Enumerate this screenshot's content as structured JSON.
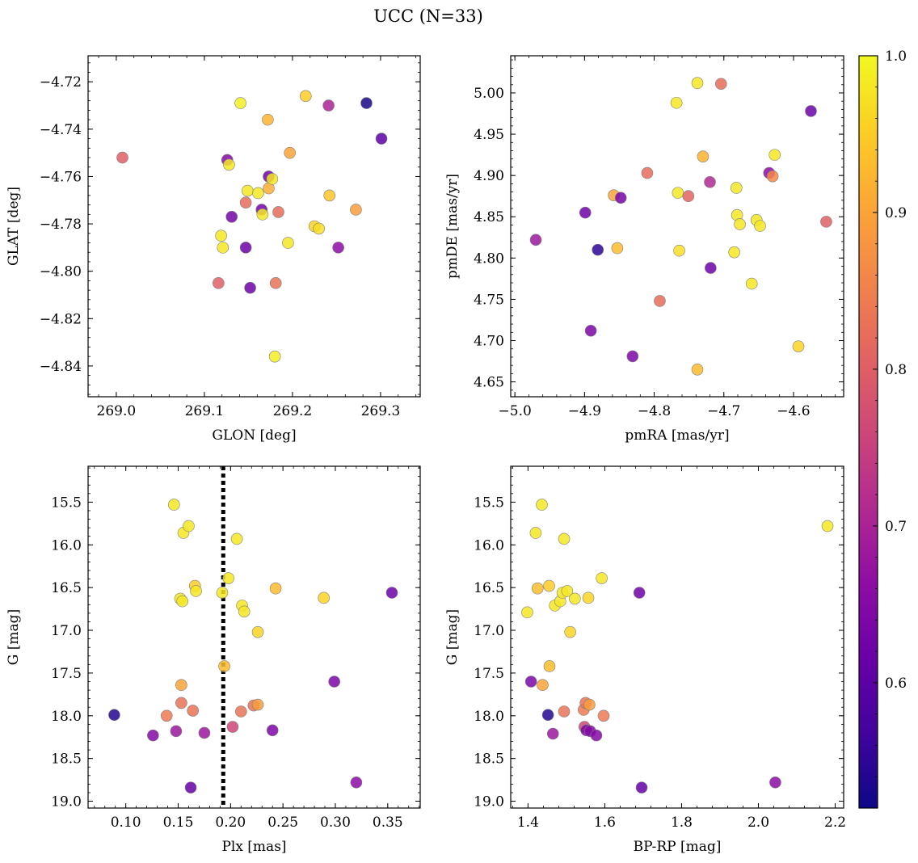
{
  "title": "UCC (N=33)",
  "chart_data": [
    {
      "id": "glon-glat",
      "type": "scatter",
      "title": "",
      "xlabel": "GLON [deg]",
      "ylabel": "GLAT [deg]",
      "xlim": [
        268.968,
        269.345
      ],
      "ylim": [
        -4.853,
        -4.709
      ],
      "y_inverted": false,
      "xticks": [
        269.0,
        269.1,
        269.2,
        269.3
      ],
      "xtick_labels": [
        "269.0",
        "269.1",
        "269.2",
        "269.3"
      ],
      "yticks": [
        -4.72,
        -4.74,
        -4.76,
        -4.78,
        -4.8,
        -4.82,
        -4.84
      ],
      "ytick_labels": [
        "−4.72",
        "−4.74",
        "−4.76",
        "−4.78",
        "−4.80",
        "−4.82",
        "−4.84"
      ],
      "points": [
        {
          "x": 269.007,
          "y": -4.752,
          "c": 0.8
        },
        {
          "x": 269.116,
          "y": -4.805,
          "c": 0.8
        },
        {
          "x": 269.119,
          "y": -4.785,
          "c": 0.98
        },
        {
          "x": 269.121,
          "y": -4.79,
          "c": 0.98
        },
        {
          "x": 269.126,
          "y": -4.753,
          "c": 0.65
        },
        {
          "x": 269.128,
          "y": -4.755,
          "c": 0.98
        },
        {
          "x": 269.131,
          "y": -4.777,
          "c": 0.63
        },
        {
          "x": 269.141,
          "y": -4.729,
          "c": 0.99
        },
        {
          "x": 269.147,
          "y": -4.771,
          "c": 0.82
        },
        {
          "x": 269.147,
          "y": -4.79,
          "c": 0.62
        },
        {
          "x": 269.149,
          "y": -4.766,
          "c": 0.98
        },
        {
          "x": 269.152,
          "y": -4.807,
          "c": 0.62
        },
        {
          "x": 269.161,
          "y": -4.767,
          "c": 0.98
        },
        {
          "x": 269.165,
          "y": -4.774,
          "c": 0.63
        },
        {
          "x": 269.166,
          "y": -4.776,
          "c": 0.98
        },
        {
          "x": 269.172,
          "y": -4.736,
          "c": 0.92
        },
        {
          "x": 269.173,
          "y": -4.76,
          "c": 0.62
        },
        {
          "x": 269.173,
          "y": -4.765,
          "c": 0.91
        },
        {
          "x": 269.177,
          "y": -4.761,
          "c": 0.98
        },
        {
          "x": 269.18,
          "y": -4.836,
          "c": 0.99
        },
        {
          "x": 269.181,
          "y": -4.805,
          "c": 0.83
        },
        {
          "x": 269.184,
          "y": -4.775,
          "c": 0.82
        },
        {
          "x": 269.195,
          "y": -4.788,
          "c": 0.98
        },
        {
          "x": 269.197,
          "y": -4.75,
          "c": 0.9
        },
        {
          "x": 269.215,
          "y": -4.726,
          "c": 0.95
        },
        {
          "x": 269.225,
          "y": -4.781,
          "c": 0.96
        },
        {
          "x": 269.23,
          "y": -4.782,
          "c": 0.97
        },
        {
          "x": 269.241,
          "y": -4.73,
          "c": 0.7
        },
        {
          "x": 269.242,
          "y": -4.768,
          "c": 0.94
        },
        {
          "x": 269.252,
          "y": -4.79,
          "c": 0.66
        },
        {
          "x": 269.272,
          "y": -4.774,
          "c": 0.89
        },
        {
          "x": 269.284,
          "y": -4.729,
          "c": 0.53
        },
        {
          "x": 269.301,
          "y": -4.744,
          "c": 0.6
        }
      ]
    },
    {
      "id": "pmra-pmde",
      "type": "scatter",
      "title": "",
      "xlabel": "pmRA [mas/yr]",
      "ylabel": "pmDE [mas/yr]",
      "xlim": [
        -5.006,
        -4.528
      ],
      "ylim": [
        4.632,
        5.045
      ],
      "y_inverted": false,
      "xticks": [
        -5.0,
        -4.9,
        -4.8,
        -4.7,
        -4.6
      ],
      "xtick_labels": [
        "−5.0",
        "−4.9",
        "−4.8",
        "−4.7",
        "−4.6"
      ],
      "yticks": [
        4.65,
        4.7,
        4.75,
        4.8,
        4.85,
        4.9,
        4.95,
        5.0
      ],
      "ytick_labels": [
        "4.65",
        "4.70",
        "4.75",
        "4.80",
        "4.85",
        "4.90",
        "4.95",
        "5.00"
      ],
      "points": [
        {
          "x": -4.97,
          "y": 4.822,
          "c": 0.68
        },
        {
          "x": -4.899,
          "y": 4.855,
          "c": 0.62
        },
        {
          "x": -4.891,
          "y": 4.712,
          "c": 0.64
        },
        {
          "x": -4.881,
          "y": 4.81,
          "c": 0.55
        },
        {
          "x": -4.858,
          "y": 4.876,
          "c": 0.9
        },
        {
          "x": -4.853,
          "y": 4.812,
          "c": 0.93
        },
        {
          "x": -4.848,
          "y": 4.873,
          "c": 0.63
        },
        {
          "x": -4.831,
          "y": 4.681,
          "c": 0.64
        },
        {
          "x": -4.81,
          "y": 4.903,
          "c": 0.82
        },
        {
          "x": -4.792,
          "y": 4.748,
          "c": 0.82
        },
        {
          "x": -4.768,
          "y": 4.988,
          "c": 0.98
        },
        {
          "x": -4.766,
          "y": 4.879,
          "c": 0.98
        },
        {
          "x": -4.764,
          "y": 4.809,
          "c": 0.97
        },
        {
          "x": -4.751,
          "y": 4.875,
          "c": 0.81
        },
        {
          "x": -4.738,
          "y": 5.012,
          "c": 0.98
        },
        {
          "x": -4.738,
          "y": 4.665,
          "c": 0.93
        },
        {
          "x": -4.73,
          "y": 4.923,
          "c": 0.92
        },
        {
          "x": -4.72,
          "y": 4.892,
          "c": 0.71
        },
        {
          "x": -4.719,
          "y": 4.788,
          "c": 0.62
        },
        {
          "x": -4.704,
          "y": 5.011,
          "c": 0.82
        },
        {
          "x": -4.685,
          "y": 4.807,
          "c": 0.98
        },
        {
          "x": -4.682,
          "y": 4.885,
          "c": 0.98
        },
        {
          "x": -4.681,
          "y": 4.852,
          "c": 0.98
        },
        {
          "x": -4.677,
          "y": 4.841,
          "c": 0.98
        },
        {
          "x": -4.66,
          "y": 4.769,
          "c": 0.98
        },
        {
          "x": -4.653,
          "y": 4.846,
          "c": 0.98
        },
        {
          "x": -4.648,
          "y": 4.839,
          "c": 0.98
        },
        {
          "x": -4.635,
          "y": 4.903,
          "c": 0.66
        },
        {
          "x": -4.63,
          "y": 4.899,
          "c": 0.86
        },
        {
          "x": -4.627,
          "y": 4.925,
          "c": 0.98
        },
        {
          "x": -4.593,
          "y": 4.693,
          "c": 0.96
        },
        {
          "x": -4.575,
          "y": 4.978,
          "c": 0.62
        },
        {
          "x": -4.553,
          "y": 4.844,
          "c": 0.8
        }
      ]
    },
    {
      "id": "plx-g",
      "type": "scatter",
      "title": "",
      "xlabel": "Plx [mas]",
      "ylabel": "G [mag]",
      "xlim": [
        0.064,
        0.381
      ],
      "ylim": [
        19.08,
        15.08
      ],
      "y_inverted": true,
      "xticks": [
        0.1,
        0.15,
        0.2,
        0.25,
        0.3,
        0.35
      ],
      "xtick_labels": [
        "0.10",
        "0.15",
        "0.20",
        "0.25",
        "0.30",
        "0.35"
      ],
      "yticks": [
        15.5,
        16.0,
        16.5,
        17.0,
        17.5,
        18.0,
        18.5,
        19.0
      ],
      "ytick_labels": [
        "15.5",
        "16.0",
        "16.5",
        "17.0",
        "17.5",
        "18.0",
        "18.5",
        "19.0"
      ],
      "vline": {
        "x": 0.193,
        "style": "dotted",
        "color": "#000000"
      },
      "points": [
        {
          "x": 0.089,
          "y": 17.99,
          "c": 0.54
        },
        {
          "x": 0.126,
          "y": 18.23,
          "c": 0.65
        },
        {
          "x": 0.139,
          "y": 18.0,
          "c": 0.84
        },
        {
          "x": 0.146,
          "y": 15.53,
          "c": 0.98
        },
        {
          "x": 0.148,
          "y": 18.18,
          "c": 0.68
        },
        {
          "x": 0.152,
          "y": 16.63,
          "c": 0.98
        },
        {
          "x": 0.153,
          "y": 17.64,
          "c": 0.9
        },
        {
          "x": 0.153,
          "y": 17.85,
          "c": 0.83
        },
        {
          "x": 0.154,
          "y": 16.66,
          "c": 0.98
        },
        {
          "x": 0.155,
          "y": 15.86,
          "c": 0.98
        },
        {
          "x": 0.16,
          "y": 15.78,
          "c": 0.98
        },
        {
          "x": 0.162,
          "y": 18.84,
          "c": 0.61
        },
        {
          "x": 0.164,
          "y": 17.94,
          "c": 0.83
        },
        {
          "x": 0.166,
          "y": 16.48,
          "c": 0.95
        },
        {
          "x": 0.167,
          "y": 16.54,
          "c": 0.98
        },
        {
          "x": 0.175,
          "y": 18.2,
          "c": 0.68
        },
        {
          "x": 0.192,
          "y": 16.56,
          "c": 0.98
        },
        {
          "x": 0.194,
          "y": 17.42,
          "c": 0.93
        },
        {
          "x": 0.198,
          "y": 16.39,
          "c": 0.98
        },
        {
          "x": 0.202,
          "y": 18.13,
          "c": 0.76
        },
        {
          "x": 0.206,
          "y": 15.93,
          "c": 0.98
        },
        {
          "x": 0.21,
          "y": 17.95,
          "c": 0.83
        },
        {
          "x": 0.211,
          "y": 16.71,
          "c": 0.98
        },
        {
          "x": 0.213,
          "y": 16.78,
          "c": 0.98
        },
        {
          "x": 0.222,
          "y": 17.88,
          "c": 0.83
        },
        {
          "x": 0.226,
          "y": 17.87,
          "c": 0.89
        },
        {
          "x": 0.226,
          "y": 17.02,
          "c": 0.96
        },
        {
          "x": 0.24,
          "y": 18.17,
          "c": 0.64
        },
        {
          "x": 0.243,
          "y": 16.51,
          "c": 0.93
        },
        {
          "x": 0.289,
          "y": 16.62,
          "c": 0.96
        },
        {
          "x": 0.299,
          "y": 17.6,
          "c": 0.64
        },
        {
          "x": 0.32,
          "y": 18.78,
          "c": 0.66
        },
        {
          "x": 0.354,
          "y": 16.56,
          "c": 0.62
        }
      ]
    },
    {
      "id": "bprp-g",
      "type": "scatter",
      "title": "",
      "xlabel": "BP-RP [mag]",
      "ylabel": "G [mag]",
      "xlim": [
        1.355,
        2.222
      ],
      "ylim": [
        19.08,
        15.08
      ],
      "y_inverted": true,
      "xticks": [
        1.4,
        1.6,
        1.8,
        2.0,
        2.2
      ],
      "xtick_labels": [
        "1.4",
        "1.6",
        "1.8",
        "2.0",
        "2.2"
      ],
      "yticks": [
        15.5,
        16.0,
        16.5,
        17.0,
        17.5,
        18.0,
        18.5,
        19.0
      ],
      "ytick_labels": [
        "15.5",
        "16.0",
        "16.5",
        "17.0",
        "17.5",
        "18.0",
        "18.5",
        "19.0"
      ],
      "points": [
        {
          "x": 1.398,
          "y": 16.79,
          "c": 0.98
        },
        {
          "x": 1.408,
          "y": 17.6,
          "c": 0.64
        },
        {
          "x": 1.42,
          "y": 15.86,
          "c": 0.98
        },
        {
          "x": 1.425,
          "y": 16.51,
          "c": 0.93
        },
        {
          "x": 1.436,
          "y": 15.53,
          "c": 0.98
        },
        {
          "x": 1.438,
          "y": 17.64,
          "c": 0.9
        },
        {
          "x": 1.452,
          "y": 17.99,
          "c": 0.54
        },
        {
          "x": 1.455,
          "y": 16.48,
          "c": 0.95
        },
        {
          "x": 1.456,
          "y": 17.42,
          "c": 0.93
        },
        {
          "x": 1.465,
          "y": 18.21,
          "c": 0.68
        },
        {
          "x": 1.47,
          "y": 16.71,
          "c": 0.98
        },
        {
          "x": 1.484,
          "y": 16.66,
          "c": 0.98
        },
        {
          "x": 1.49,
          "y": 16.56,
          "c": 0.98
        },
        {
          "x": 1.494,
          "y": 15.93,
          "c": 0.98
        },
        {
          "x": 1.494,
          "y": 17.95,
          "c": 0.83
        },
        {
          "x": 1.502,
          "y": 16.54,
          "c": 0.98
        },
        {
          "x": 1.51,
          "y": 17.02,
          "c": 0.96
        },
        {
          "x": 1.522,
          "y": 16.63,
          "c": 0.98
        },
        {
          "x": 1.545,
          "y": 17.93,
          "c": 0.84
        },
        {
          "x": 1.547,
          "y": 18.13,
          "c": 0.76
        },
        {
          "x": 1.55,
          "y": 17.85,
          "c": 0.83
        },
        {
          "x": 1.552,
          "y": 18.17,
          "c": 0.64
        },
        {
          "x": 1.557,
          "y": 16.62,
          "c": 0.96
        },
        {
          "x": 1.56,
          "y": 17.87,
          "c": 0.89
        },
        {
          "x": 1.562,
          "y": 18.18,
          "c": 0.65
        },
        {
          "x": 1.578,
          "y": 18.23,
          "c": 0.65
        },
        {
          "x": 1.592,
          "y": 16.39,
          "c": 0.98
        },
        {
          "x": 1.597,
          "y": 18.0,
          "c": 0.84
        },
        {
          "x": 1.69,
          "y": 16.56,
          "c": 0.62
        },
        {
          "x": 1.696,
          "y": 18.84,
          "c": 0.61
        },
        {
          "x": 2.044,
          "y": 18.78,
          "c": 0.66
        },
        {
          "x": 2.18,
          "y": 15.78,
          "c": 0.98
        }
      ]
    }
  ],
  "colorbar": {
    "colormap": "plasma",
    "range": [
      0.52,
      1.0
    ],
    "ticks": [
      0.6,
      0.7,
      0.8,
      0.9,
      1.0
    ],
    "tick_labels": [
      "0.6",
      "0.7",
      "0.8",
      "0.9",
      "1.0"
    ]
  },
  "marker_style": {
    "edge_color": "#7f7f7f",
    "alpha": 0.85
  }
}
